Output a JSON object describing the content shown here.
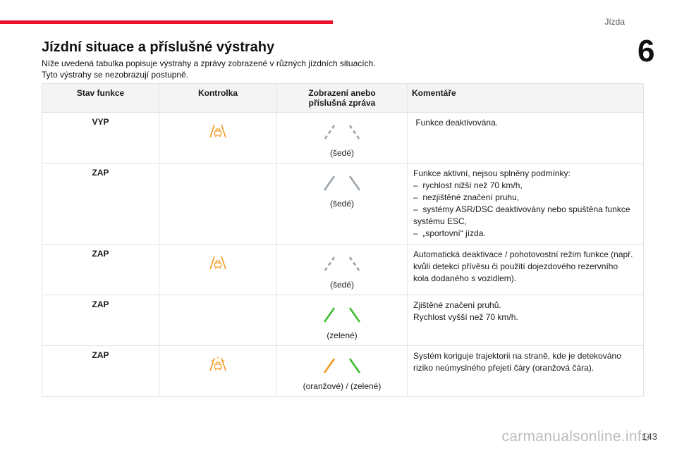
{
  "header": {
    "section": "Jízda",
    "chapter": "6"
  },
  "title": "Jízdní situace a příslušné výstrahy",
  "intro": [
    "Níže uvedená tabulka popisuje výstrahy a zprávy zobrazené v různých jízdních situacích.",
    "Tyto výstrahy se nezobrazují postupně."
  ],
  "table": {
    "headers": {
      "state": "Stav funkce",
      "indicator": "Kontrolka",
      "display_line1": "Zobrazení anebo",
      "display_line2": "příslušná zpráva",
      "comment": "Komentáře"
    },
    "rows": [
      {
        "state": "VYP",
        "indicator": "lane-warning-icon",
        "lanes": "grey-dashed",
        "caption": "(šedé)",
        "comment": [
          " Funkce deaktivována."
        ]
      },
      {
        "state": "ZAP",
        "indicator": "",
        "lanes": "grey-solid",
        "caption": "(šedé)",
        "comment": [
          "Funkce aktivní, nejsou splněny podmínky:",
          "–  rychlost nižší než 70 km/h,",
          "–  nezjištěné značení pruhu,",
          "–  systémy ASR/DSC deaktivovány nebo spuštěna funkce",
          "systému ESC,",
          "–  „sportovní“ jízda."
        ]
      },
      {
        "state": "ZAP",
        "indicator": "lane-warning-icon",
        "lanes": "grey-dashed",
        "caption": "(šedé)",
        "comment": [
          "Automatická deaktivace / pohotovostní režim funkce (např.",
          "kvůli detekci přívěsu či použití dojezdového rezervního",
          "kola dodaného s vozidlem)."
        ]
      },
      {
        "state": "ZAP",
        "indicator": "",
        "lanes": "green",
        "caption": "(zelené)",
        "comment": [
          "Zjištěné značení pruhů.",
          "Rychlost vyšší než 70 km/h."
        ]
      },
      {
        "state": "ZAP",
        "indicator": "lane-correcting-icon",
        "lanes": "orange-green",
        "caption": "(oranžové) / (zelené)",
        "comment": [
          "Systém koriguje trajektorii na straně, kde je detekováno",
          "riziko neúmyslného přejetí čáry (oranžová čára)."
        ]
      }
    ]
  },
  "footer": {
    "page": "143",
    "watermark": "carmanualsonline.info"
  },
  "colors": {
    "accent_red": "#e8102a",
    "warning_orange": "#f39a1e",
    "lane_grey": "#9aa3ab",
    "lane_green": "#3dbb2f",
    "lane_orange": "#f39a1e"
  }
}
